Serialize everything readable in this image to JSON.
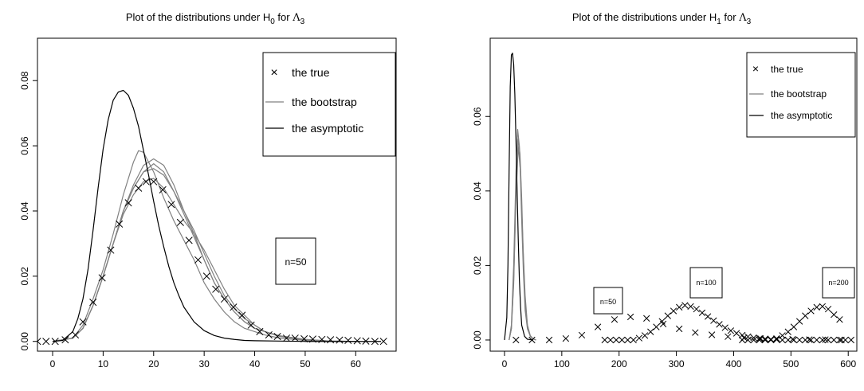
{
  "chart_data": [
    {
      "type": "line",
      "title_prefix": "Plot of the distributions under H",
      "title_sub": "0",
      "title_mid": " for ",
      "title_sym": "Λ",
      "title_sym_sub": "3",
      "xlim": [
        -3,
        68
      ],
      "ylim": [
        -0.003,
        0.093
      ],
      "x_ticks": [
        0,
        10,
        20,
        30,
        40,
        50,
        60
      ],
      "y_ticks": [
        0.0,
        0.02,
        0.04,
        0.06,
        0.08
      ],
      "x_tick_labels": [
        "0",
        "10",
        "20",
        "30",
        "40",
        "50",
        "60"
      ],
      "y_tick_labels": [
        "0.00",
        "0.02",
        "0.04",
        "0.06",
        "0.08"
      ],
      "legend": {
        "position": "top-right",
        "entries": [
          {
            "label": "the true",
            "marker": "cross"
          },
          {
            "label": "the bootstrap",
            "line": "gray"
          },
          {
            "label": "the asymptotic",
            "line": "black"
          }
        ]
      },
      "annotations": [
        {
          "text": "n=50",
          "x": 56,
          "y": 0.024
        }
      ],
      "colors": {
        "bootstrap": "#808080",
        "asymptotic": "#000000",
        "true": "#000000"
      },
      "asymptotic_curve": {
        "x": [
          0,
          2,
          4,
          5,
          6,
          7,
          8,
          9,
          10,
          11,
          12,
          13,
          14,
          15,
          16,
          17,
          18,
          19,
          20,
          21,
          22,
          23,
          24,
          25,
          26,
          28,
          30,
          32,
          34,
          36,
          38,
          40,
          45,
          50,
          55,
          60,
          65
        ],
        "y": [
          0.0,
          0.0003,
          0.003,
          0.007,
          0.013,
          0.022,
          0.034,
          0.047,
          0.059,
          0.068,
          0.074,
          0.0765,
          0.077,
          0.0755,
          0.0715,
          0.066,
          0.0585,
          0.051,
          0.043,
          0.0355,
          0.029,
          0.023,
          0.018,
          0.014,
          0.0105,
          0.006,
          0.0033,
          0.0018,
          0.001,
          0.0006,
          0.0003,
          0.0002,
          0.0001,
          0.0,
          0.0,
          0.0,
          0.0
        ]
      },
      "bootstrap_curves": [
        {
          "x": [
            0,
            4,
            6,
            8,
            10,
            12,
            14,
            16,
            17,
            18,
            20,
            22,
            24,
            26,
            28,
            30,
            32,
            34,
            36,
            38,
            40,
            42,
            45,
            50,
            55,
            60
          ],
          "y": [
            0.0,
            0.001,
            0.005,
            0.013,
            0.022,
            0.033,
            0.045,
            0.055,
            0.0585,
            0.058,
            0.052,
            0.044,
            0.037,
            0.031,
            0.025,
            0.018,
            0.013,
            0.009,
            0.006,
            0.004,
            0.003,
            0.002,
            0.001,
            0.0003,
            0.0,
            0.0
          ]
        },
        {
          "x": [
            0,
            4,
            6,
            8,
            10,
            12,
            14,
            16,
            18,
            20,
            22,
            24,
            26,
            28,
            30,
            32,
            34,
            36,
            38,
            40,
            42,
            45,
            50,
            55,
            60
          ],
          "y": [
            0.0,
            0.001,
            0.004,
            0.011,
            0.02,
            0.03,
            0.04,
            0.048,
            0.054,
            0.056,
            0.054,
            0.048,
            0.04,
            0.033,
            0.025,
            0.018,
            0.013,
            0.009,
            0.006,
            0.004,
            0.003,
            0.0015,
            0.0005,
            0.0001,
            0.0
          ]
        },
        {
          "x": [
            0,
            4,
            6,
            8,
            10,
            12,
            14,
            16,
            18,
            20,
            22,
            24,
            26,
            28,
            30,
            32,
            34,
            36,
            38,
            40,
            42,
            45,
            50,
            55,
            60
          ],
          "y": [
            0.0,
            0.001,
            0.004,
            0.011,
            0.02,
            0.03,
            0.04,
            0.047,
            0.052,
            0.0545,
            0.052,
            0.046,
            0.039,
            0.032,
            0.025,
            0.018,
            0.013,
            0.009,
            0.006,
            0.004,
            0.003,
            0.0015,
            0.0005,
            0.0001,
            0.0
          ]
        },
        {
          "x": [
            0,
            4,
            6,
            8,
            10,
            12,
            14,
            16,
            18,
            20,
            22,
            24,
            26,
            28,
            30,
            32,
            34,
            36,
            38,
            40,
            42,
            45,
            50,
            55,
            60
          ],
          "y": [
            0.0,
            0.001,
            0.004,
            0.011,
            0.02,
            0.03,
            0.04,
            0.047,
            0.052,
            0.053,
            0.051,
            0.046,
            0.04,
            0.034,
            0.027,
            0.02,
            0.014,
            0.01,
            0.007,
            0.005,
            0.003,
            0.0017,
            0.0006,
            0.0001,
            0.0
          ]
        },
        {
          "x": [
            0,
            4,
            6,
            8,
            10,
            12,
            14,
            16,
            18,
            20,
            22,
            24,
            26,
            28,
            30,
            32,
            34,
            36,
            38,
            40,
            42,
            45,
            50,
            55,
            60
          ],
          "y": [
            0.0,
            0.001,
            0.004,
            0.011,
            0.02,
            0.03,
            0.039,
            0.045,
            0.049,
            0.05,
            0.047,
            0.042,
            0.037,
            0.033,
            0.028,
            0.022,
            0.016,
            0.011,
            0.008,
            0.005,
            0.003,
            0.0017,
            0.0006,
            0.0001,
            0.0
          ]
        }
      ],
      "true_points": {
        "x": [
          -3,
          -1.3,
          0.5,
          2.5,
          4.5,
          6,
          8,
          9.8,
          11.5,
          13.2,
          15,
          17,
          18.5,
          20,
          21.8,
          23.5,
          25.3,
          27,
          28.8,
          30.5,
          32.3,
          34,
          35.8,
          37.5,
          39.3,
          41,
          42.8,
          44.5,
          46.3,
          48,
          49.8,
          51.5,
          53.3,
          55,
          56.8,
          58.5,
          60.3,
          62,
          63.8,
          65.5
        ],
        "y": [
          0.0,
          0.0,
          0.0,
          0.0005,
          0.002,
          0.006,
          0.012,
          0.0195,
          0.028,
          0.036,
          0.0425,
          0.047,
          0.049,
          0.049,
          0.0465,
          0.042,
          0.0365,
          0.031,
          0.025,
          0.02,
          0.016,
          0.013,
          0.0105,
          0.008,
          0.005,
          0.003,
          0.002,
          0.0015,
          0.001,
          0.001,
          0.0008,
          0.0007,
          0.0006,
          0.0005,
          0.0004,
          0.0003,
          0.0002,
          0.0001,
          0.0,
          0.0
        ]
      }
    },
    {
      "type": "line",
      "title_prefix": "Plot of the distributions under H",
      "title_sub": "1",
      "title_mid": " for ",
      "title_sym": "Λ",
      "title_sym_sub": "3",
      "xlim": [
        -25,
        615
      ],
      "ylim": [
        -0.003,
        0.081
      ],
      "x_ticks": [
        0,
        100,
        200,
        300,
        400,
        500,
        600
      ],
      "y_ticks": [
        0.0,
        0.02,
        0.04,
        0.06
      ],
      "x_tick_labels": [
        "0",
        "100",
        "200",
        "300",
        "400",
        "500",
        "600"
      ],
      "y_tick_labels": [
        "0.00",
        "0.02",
        "0.04",
        "0.06"
      ],
      "legend": {
        "position": "top-right",
        "entries": [
          {
            "label": "the true",
            "marker": "cross"
          },
          {
            "label": "the bootstrap",
            "line": "gray"
          },
          {
            "label": "the asymptotic",
            "line": "black"
          }
        ]
      },
      "annotations": [
        {
          "text": "n=50",
          "x": 185,
          "y": 0.0115
        },
        {
          "text": "n=100",
          "x": 345,
          "y": 0.0165
        },
        {
          "text": "n=200",
          "x": 578,
          "y": 0.0165
        }
      ],
      "colors": {
        "bootstrap": "#808080",
        "asymptotic": "#000000",
        "true": "#000000"
      },
      "asymptotic_curve": {
        "x": [
          0,
          4,
          6,
          8,
          10,
          12,
          14,
          16,
          18,
          20,
          22,
          24,
          26,
          28,
          30,
          35,
          40,
          50
        ],
        "y": [
          0.0,
          0.006,
          0.02,
          0.045,
          0.068,
          0.0765,
          0.077,
          0.074,
          0.066,
          0.054,
          0.04,
          0.027,
          0.016,
          0.009,
          0.004,
          0.001,
          0.0002,
          0.0
        ]
      },
      "bootstrap_curves": [
        {
          "x": [
            8,
            12,
            16,
            20,
            23,
            26,
            28,
            30,
            33,
            36,
            40,
            45,
            50,
            55
          ],
          "y": [
            0.0,
            0.004,
            0.02,
            0.045,
            0.0565,
            0.052,
            0.043,
            0.032,
            0.018,
            0.008,
            0.003,
            0.001,
            0.0003,
            0.0
          ]
        },
        {
          "x": [
            8,
            12,
            16,
            20,
            24,
            27,
            30,
            33,
            36,
            40,
            45,
            50,
            55
          ],
          "y": [
            0.0,
            0.003,
            0.016,
            0.04,
            0.054,
            0.05,
            0.038,
            0.022,
            0.01,
            0.004,
            0.001,
            0.0003,
            0.0
          ]
        },
        {
          "x": [
            8,
            12,
            16,
            20,
            24,
            28,
            32,
            36,
            40,
            45,
            50,
            55
          ],
          "y": [
            0.0,
            0.003,
            0.015,
            0.038,
            0.052,
            0.045,
            0.026,
            0.012,
            0.004,
            0.0012,
            0.0003,
            0.0
          ]
        }
      ],
      "true_points": {
        "x": [
          20,
          48,
          78,
          107,
          135,
          163,
          192,
          220,
          248,
          277,
          305,
          333,
          362,
          390,
          418,
          447,
          475,
          503,
          532,
          560,
          588,
          175,
          185,
          195,
          205,
          215,
          225,
          235,
          245,
          255,
          265,
          275,
          285,
          295,
          305,
          315,
          325,
          335,
          345,
          355,
          365,
          375,
          385,
          395,
          405,
          415,
          425,
          435,
          445,
          455,
          465,
          475,
          485,
          495,
          505,
          515,
          525,
          535,
          545,
          555,
          565,
          575,
          585,
          595,
          605,
          415,
          425,
          435,
          445,
          455,
          465,
          475,
          485,
          495,
          505,
          515,
          525,
          535,
          545,
          555,
          565,
          575,
          585
        ],
        "y": [
          0.0,
          0.0,
          0.0,
          0.0004,
          0.0013,
          0.0035,
          0.0055,
          0.0062,
          0.0058,
          0.0043,
          0.003,
          0.002,
          0.0014,
          0.0009,
          0.0006,
          0.0004,
          0.0003,
          0.0002,
          0.0001,
          0.0001,
          0.0,
          0.0,
          0.0,
          0.0,
          0.0,
          0.0,
          0.0,
          0.0005,
          0.0012,
          0.0022,
          0.0035,
          0.005,
          0.0065,
          0.0078,
          0.0088,
          0.0093,
          0.009,
          0.0083,
          0.0073,
          0.0063,
          0.0052,
          0.0042,
          0.0033,
          0.0025,
          0.0018,
          0.0013,
          0.0009,
          0.0006,
          0.0004,
          0.0003,
          0.0002,
          0.0001,
          0.0,
          0.0,
          0.0,
          0.0,
          0.0,
          0.0,
          0.0,
          0.0,
          0.0,
          0.0,
          0.0,
          0.0,
          0.0,
          0.0,
          0.0,
          0.0,
          0.0,
          0.0,
          0.0,
          0.0004,
          0.0012,
          0.0022,
          0.0035,
          0.005,
          0.0065,
          0.0078,
          0.0088,
          0.009,
          0.0083,
          0.0068,
          0.0055
        ]
      }
    }
  ]
}
